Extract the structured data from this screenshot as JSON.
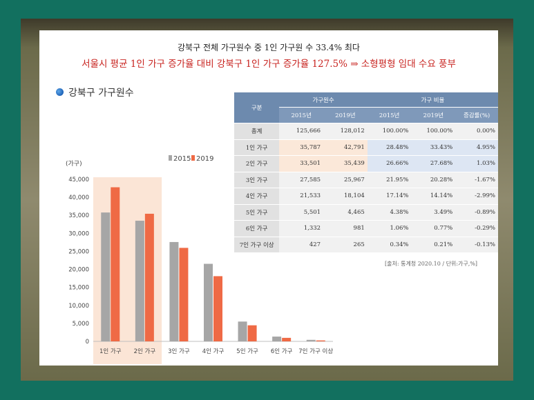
{
  "header": {
    "line1": "강북구 전체 가구원수 중 1인 가구원 수 33.4% 최다",
    "line2": "서울시 평균 1인 가구 증가율 대비 강북구 1인 가구 증가율 127.5% ⇒ 소형평형 임대 수요 풍부"
  },
  "section_title": "강북구 가구원수",
  "colors": {
    "s2015": "#a6a6a6",
    "s2019": "#ef6a45",
    "highlight": "#fbe5d6",
    "table_header": "#6d8aae"
  },
  "chart_data": {
    "type": "bar",
    "ylabel": "(가구)",
    "ylim": [
      0,
      45000
    ],
    "yticks": [
      "45,000",
      "40,000",
      "35,000",
      "30,000",
      "25,000",
      "20,000",
      "15,000",
      "10,000",
      "5,000",
      "0"
    ],
    "legend_position": "top-right",
    "categories": [
      "1인 가구",
      "2인 가구",
      "3인 가구",
      "4인 가구",
      "5인 가구",
      "6인 가구",
      "7인 가구 이상"
    ],
    "series": [
      {
        "name": "2015",
        "values": [
          35787,
          33501,
          27585,
          21533,
          5501,
          1332,
          427
        ]
      },
      {
        "name": "2019",
        "values": [
          42791,
          35439,
          25967,
          18104,
          4465,
          981,
          265
        ]
      }
    ],
    "highlighted_categories": [
      "1인 가구",
      "2인 가구"
    ]
  },
  "table": {
    "corner": "구분",
    "group1": "가구원수",
    "group2": "가구 비율",
    "subheaders": [
      "2015년",
      "2019년",
      "2015년",
      "2019년",
      "증감률(%)"
    ],
    "rows": [
      {
        "label": "총계",
        "v": [
          "125,666",
          "128,012",
          "100.00%",
          "100.00%",
          "0.00%"
        ]
      },
      {
        "label": "1인 가구",
        "v": [
          "35,787",
          "42,791",
          "28.48%",
          "33.43%",
          "4.95%"
        ]
      },
      {
        "label": "2인 가구",
        "v": [
          "33,501",
          "35,439",
          "26.66%",
          "27.68%",
          "1.03%"
        ]
      },
      {
        "label": "3인 가구",
        "v": [
          "27,585",
          "25,967",
          "21.95%",
          "20.28%",
          "-1.67%"
        ]
      },
      {
        "label": "4인 가구",
        "v": [
          "21,533",
          "18,104",
          "17.14%",
          "14.14%",
          "-2.99%"
        ]
      },
      {
        "label": "5인 가구",
        "v": [
          "5,501",
          "4,465",
          "4.38%",
          "3.49%",
          "-0.89%"
        ]
      },
      {
        "label": "6인 가구",
        "v": [
          "1,332",
          "981",
          "1.06%",
          "0.77%",
          "-0.29%"
        ]
      },
      {
        "label": "7인 가구 이상",
        "v": [
          "427",
          "265",
          "0.34%",
          "0.21%",
          "-0.13%"
        ]
      }
    ],
    "source": "[출처: 통계청 2020.10 / 단위:가구,%]"
  }
}
